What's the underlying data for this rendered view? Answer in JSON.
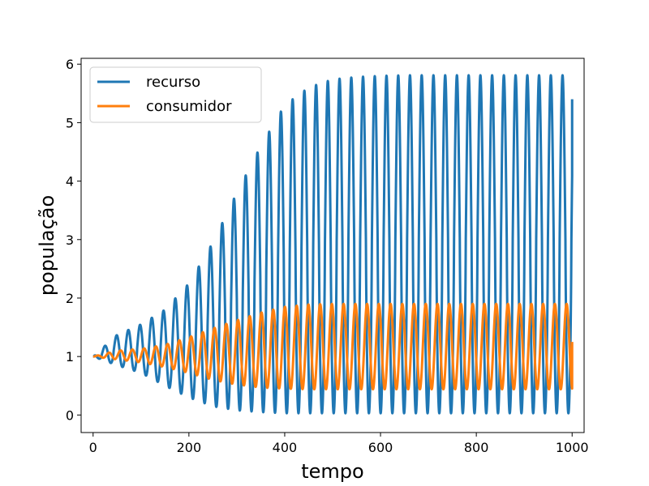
{
  "chart_data": {
    "type": "line",
    "xlabel": "tempo",
    "ylabel": "população",
    "xlim": [
      -25,
      1025
    ],
    "ylim": [
      -0.3,
      6.1
    ],
    "xticks": [
      0,
      200,
      400,
      600,
      800,
      1000
    ],
    "yticks": [
      0,
      1,
      2,
      3,
      4,
      5,
      6
    ],
    "legend_position": "top-left",
    "grid": false,
    "series": [
      {
        "name": "recurso",
        "color": "#1f77b4",
        "period": 24.5,
        "t_start": 0,
        "t_end": 1000,
        "start_value": 1.0,
        "end_value": 5.4,
        "envelope": {
          "t": [
            0,
            50,
            100,
            150,
            200,
            250,
            300,
            350,
            400,
            450,
            500,
            550,
            600,
            650,
            700,
            1000
          ],
          "max": [
            1.0,
            1.37,
            1.55,
            1.8,
            2.25,
            2.95,
            3.8,
            4.6,
            5.3,
            5.6,
            5.74,
            5.78,
            5.8,
            5.81,
            5.81,
            5.81
          ],
          "min": [
            1.0,
            0.85,
            0.72,
            0.5,
            0.3,
            0.15,
            0.08,
            0.05,
            0.03,
            0.03,
            0.03,
            0.03,
            0.03,
            0.03,
            0.03,
            0.03
          ]
        }
      },
      {
        "name": "consumidor",
        "color": "#ff7f0e",
        "period": 24.5,
        "t_start": 0,
        "t_end": 1000,
        "start_value": 1.0,
        "end_value": 1.25,
        "envelope": {
          "t": [
            0,
            50,
            100,
            150,
            200,
            250,
            300,
            350,
            400,
            450,
            500,
            550,
            600,
            650,
            700,
            1000
          ],
          "max": [
            1.0,
            1.1,
            1.13,
            1.2,
            1.33,
            1.48,
            1.62,
            1.75,
            1.85,
            1.89,
            1.9,
            1.9,
            1.9,
            1.9,
            1.9,
            1.9
          ],
          "min": [
            1.0,
            0.95,
            0.9,
            0.82,
            0.72,
            0.6,
            0.52,
            0.47,
            0.45,
            0.44,
            0.44,
            0.44,
            0.44,
            0.44,
            0.44,
            0.44
          ]
        }
      }
    ]
  }
}
